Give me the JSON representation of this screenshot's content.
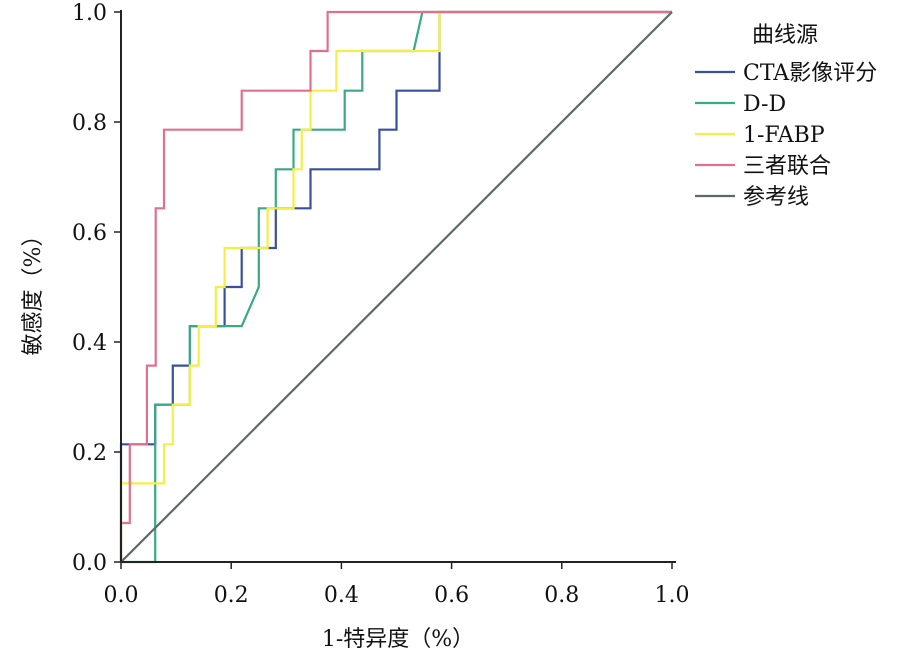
{
  "chart_data": {
    "type": "line",
    "title": "",
    "xlabel": "1-特异度（%）",
    "ylabel": "敏感度（%）",
    "xlim": [
      0,
      1
    ],
    "ylim": [
      0,
      1
    ],
    "x_ticks": [
      "0.0",
      "0.2",
      "0.4",
      "0.6",
      "0.8",
      "1.0"
    ],
    "y_ticks": [
      "0.0",
      "0.2",
      "0.4",
      "0.6",
      "0.8",
      "1.0"
    ],
    "grid": false,
    "legend": {
      "title": "曲线源",
      "placement": "right-top"
    },
    "series": [
      {
        "name": "CTA影像评分",
        "color": "#3a4fa0",
        "points": [
          [
            0,
            0
          ],
          [
            0,
            0.214
          ],
          [
            0.062,
            0.214
          ],
          [
            0.062,
            0.286
          ],
          [
            0.094,
            0.286
          ],
          [
            0.094,
            0.357
          ],
          [
            0.125,
            0.357
          ],
          [
            0.125,
            0.429
          ],
          [
            0.188,
            0.429
          ],
          [
            0.188,
            0.5
          ],
          [
            0.219,
            0.5
          ],
          [
            0.219,
            0.571
          ],
          [
            0.281,
            0.571
          ],
          [
            0.281,
            0.643
          ],
          [
            0.344,
            0.643
          ],
          [
            0.344,
            0.714
          ],
          [
            0.469,
            0.714
          ],
          [
            0.469,
            0.786
          ],
          [
            0.5,
            0.786
          ],
          [
            0.5,
            0.857
          ],
          [
            0.578,
            0.857
          ],
          [
            0.578,
            1.0
          ],
          [
            1.0,
            1.0
          ]
        ]
      },
      {
        "name": "D-D",
        "color": "#3aa986",
        "points": [
          [
            0,
            0
          ],
          [
            0.062,
            0
          ],
          [
            0.062,
            0.286
          ],
          [
            0.125,
            0.286
          ],
          [
            0.125,
            0.429
          ],
          [
            0.219,
            0.429
          ],
          [
            0.25,
            0.5
          ],
          [
            0.25,
            0.643
          ],
          [
            0.281,
            0.643
          ],
          [
            0.281,
            0.714
          ],
          [
            0.313,
            0.714
          ],
          [
            0.313,
            0.786
          ],
          [
            0.406,
            0.786
          ],
          [
            0.406,
            0.857
          ],
          [
            0.438,
            0.857
          ],
          [
            0.438,
            0.929
          ],
          [
            0.531,
            0.929
          ],
          [
            0.547,
            1.0
          ],
          [
            1.0,
            1.0
          ]
        ]
      },
      {
        "name": "1-FABP",
        "color": "#f5ee47",
        "points": [
          [
            0,
            0
          ],
          [
            0,
            0.143
          ],
          [
            0.078,
            0.143
          ],
          [
            0.078,
            0.214
          ],
          [
            0.094,
            0.214
          ],
          [
            0.094,
            0.286
          ],
          [
            0.125,
            0.286
          ],
          [
            0.125,
            0.357
          ],
          [
            0.141,
            0.357
          ],
          [
            0.141,
            0.429
          ],
          [
            0.172,
            0.429
          ],
          [
            0.172,
            0.5
          ],
          [
            0.188,
            0.5
          ],
          [
            0.188,
            0.571
          ],
          [
            0.266,
            0.571
          ],
          [
            0.266,
            0.643
          ],
          [
            0.313,
            0.643
          ],
          [
            0.313,
            0.714
          ],
          [
            0.328,
            0.714
          ],
          [
            0.328,
            0.786
          ],
          [
            0.344,
            0.786
          ],
          [
            0.344,
            0.857
          ],
          [
            0.391,
            0.857
          ],
          [
            0.391,
            0.929
          ],
          [
            0.578,
            0.929
          ],
          [
            0.578,
            1.0
          ],
          [
            1.0,
            1.0
          ]
        ]
      },
      {
        "name": "三者联合",
        "color": "#e0708e",
        "points": [
          [
            0,
            0
          ],
          [
            0,
            0.071
          ],
          [
            0.016,
            0.071
          ],
          [
            0.016,
            0.214
          ],
          [
            0.047,
            0.214
          ],
          [
            0.047,
            0.357
          ],
          [
            0.063,
            0.357
          ],
          [
            0.063,
            0.643
          ],
          [
            0.078,
            0.643
          ],
          [
            0.078,
            0.786
          ],
          [
            0.219,
            0.786
          ],
          [
            0.219,
            0.857
          ],
          [
            0.344,
            0.857
          ],
          [
            0.344,
            0.929
          ],
          [
            0.375,
            0.929
          ],
          [
            0.375,
            1.0
          ],
          [
            1.0,
            1.0
          ]
        ]
      },
      {
        "name": "参考线",
        "color": "#5e6a6a",
        "points": [
          [
            0,
            0
          ],
          [
            1,
            1
          ]
        ]
      }
    ]
  }
}
